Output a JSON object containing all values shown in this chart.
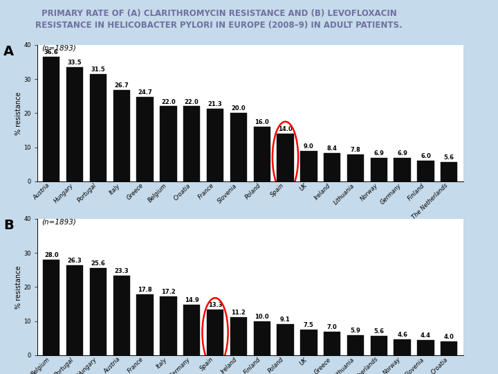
{
  "title_line1": "PRIMARY RATE OF (A) CLARITHROMYCIN RESISTANCE AND (B) LEVOFLOXACIN",
  "title_line2": "RESISTANCE IN HELICOBACTER PYLORI IN EUROPE (2008–9) IN ADULT PATIENTS.",
  "background_color": "#c5daea",
  "panel_bg": "#ffffff",
  "A": {
    "label": "A",
    "n_label": "(n=1893)",
    "categories": [
      "Austria",
      "Hungary",
      "Portugal",
      "Italy",
      "Greece",
      "Belgium",
      "Croatia",
      "France",
      "Slovenia",
      "Poland",
      "Spain",
      "UK",
      "Ireland",
      "Lithuania",
      "Norway",
      "Germany",
      "Finland",
      "The Netherlands"
    ],
    "values": [
      36.6,
      33.5,
      31.5,
      26.7,
      24.7,
      22.0,
      22.0,
      21.3,
      20.0,
      16.0,
      14.0,
      9.0,
      8.4,
      7.8,
      6.9,
      6.9,
      6.0,
      5.6
    ],
    "circle_index": 10,
    "ylim": [
      0,
      40
    ],
    "yticks": [
      0,
      10,
      20,
      30,
      40
    ],
    "ylabel": "% resistance"
  },
  "B": {
    "label": "B",
    "n_label": "(n=1893)",
    "categories": [
      "Belgium",
      "Portugal",
      "Hungary",
      "Austria",
      "France",
      "Italy",
      "Germany",
      "Spain",
      "Ireland",
      "Finland",
      "Poland",
      "UK",
      "Greece",
      "Lithuania",
      "The Netherlands",
      "Norway",
      "Slovenia",
      "Croatia"
    ],
    "values": [
      28.0,
      26.3,
      25.6,
      23.3,
      17.8,
      17.2,
      14.9,
      13.3,
      11.2,
      10.0,
      9.1,
      7.5,
      7.0,
      5.9,
      5.6,
      4.6,
      4.4,
      4.0
    ],
    "circle_index": 7,
    "ylim": [
      0,
      40
    ],
    "yticks": [
      0,
      10,
      20,
      30,
      40
    ],
    "ylabel": "% resistance"
  },
  "bar_color": "#0d0d0d",
  "bar_edge_color": "#0d0d0d",
  "circle_color": "red",
  "title_color": "#7070a0",
  "title_fontsize": 8.5,
  "label_fontsize": 14,
  "value_fontsize": 6.0,
  "tick_fontsize": 6.0,
  "ylabel_fontsize": 7.0,
  "n_label_fontsize": 7.5
}
